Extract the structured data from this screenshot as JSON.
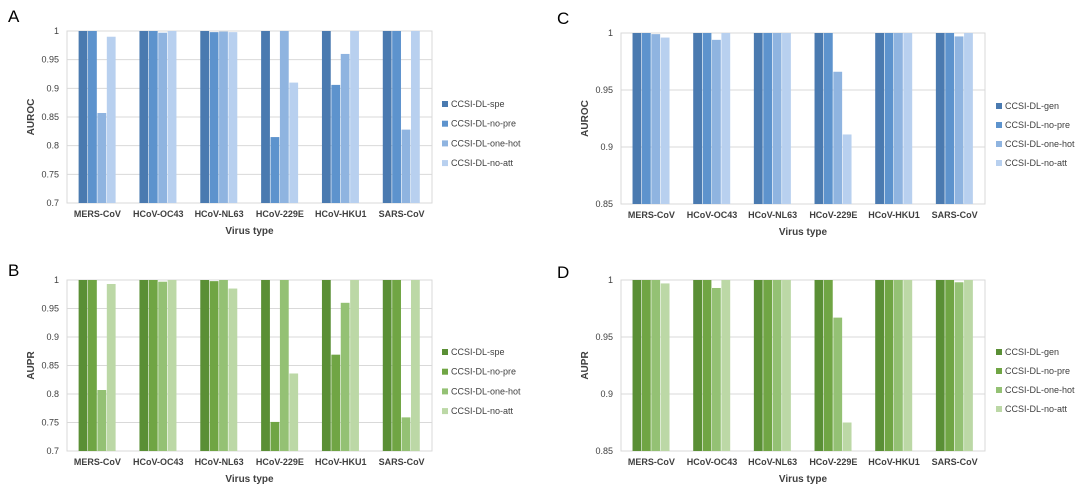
{
  "charts": [
    {
      "letter": "A",
      "type": "bar",
      "xlabel": "Virus type",
      "ylabel": "AUROC",
      "ylim": [
        0.7,
        1
      ],
      "yticks": [
        0.7,
        0.75,
        0.8,
        0.85,
        0.9,
        0.95,
        1
      ],
      "ytick_labels": [
        "0.7",
        "0.75",
        "0.8",
        "0.85",
        "0.9",
        "0.95",
        "1"
      ],
      "categories": [
        "MERS-CoV",
        "HCoV-OC43",
        "HCoV-NL63",
        "HCoV-229E",
        "HCoV-HKU1",
        "SARS-CoV"
      ],
      "series": [
        {
          "name": "CCSI-DL-spe",
          "color": "#4a7ab0",
          "values": [
            1.0,
            1.0,
            1.0,
            1.0,
            1.0,
            1.0
          ]
        },
        {
          "name": "CCSI-DL-no-pre",
          "color": "#5d93cd",
          "values": [
            1.0,
            1.0,
            0.998,
            0.815,
            0.906,
            1.0
          ]
        },
        {
          "name": "CCSI-DL-one-hot",
          "color": "#8fb4e0",
          "values": [
            0.857,
            0.997,
            0.999,
            1.0,
            0.96,
            0.828
          ]
        },
        {
          "name": "CCSI-DL-no-att",
          "color": "#b8d0ef",
          "values": [
            0.99,
            1.0,
            0.998,
            0.91,
            1.0,
            1.0
          ]
        }
      ],
      "legend": "right"
    },
    {
      "letter": "B",
      "type": "bar",
      "xlabel": "Virus type",
      "ylabel": "AUPR",
      "ylim": [
        0.7,
        1
      ],
      "yticks": [
        0.7,
        0.75,
        0.8,
        0.85,
        0.9,
        0.95,
        1
      ],
      "ytick_labels": [
        "0.7",
        "0.75",
        "0.8",
        "0.85",
        "0.9",
        "0.95",
        "1"
      ],
      "categories": [
        "MERS-CoV",
        "HCoV-OC43",
        "HCoV-NL63",
        "HCoV-229E",
        "HCoV-HKU1",
        "SARS-CoV"
      ],
      "series": [
        {
          "name": "CCSI-DL-spe",
          "color": "#5a8f35",
          "values": [
            1.0,
            1.0,
            1.0,
            1.0,
            1.0,
            1.0
          ]
        },
        {
          "name": "CCSI-DL-no-pre",
          "color": "#70a544",
          "values": [
            1.0,
            1.0,
            0.998,
            0.751,
            0.869,
            1.0
          ]
        },
        {
          "name": "CCSI-DL-one-hot",
          "color": "#94c174",
          "values": [
            0.807,
            0.997,
            1.0,
            1.0,
            0.96,
            0.759
          ]
        },
        {
          "name": "CCSI-DL-no-att",
          "color": "#bcd8a6",
          "values": [
            0.993,
            1.0,
            0.985,
            0.836,
            1.0,
            1.0
          ]
        }
      ],
      "legend": "right"
    },
    {
      "letter": "C",
      "type": "bar",
      "xlabel": "Virus type",
      "ylabel": "AUROC",
      "ylim": [
        0.85,
        1
      ],
      "yticks": [
        0.85,
        0.9,
        0.95,
        1
      ],
      "ytick_labels": [
        "0.85",
        "0.9",
        "0.95",
        "1"
      ],
      "categories": [
        "MERS-CoV",
        "HCoV-OC43",
        "HCoV-NL63",
        "HCoV-229E",
        "HCoV-HKU1",
        "SARS-CoV"
      ],
      "series": [
        {
          "name": "CCSI-DL-gen",
          "color": "#4a7ab0",
          "values": [
            1.0,
            1.0,
            1.0,
            1.0,
            1.0,
            1.0
          ]
        },
        {
          "name": "CCSI-DL-no-pre",
          "color": "#5d93cd",
          "values": [
            1.0,
            1.0,
            1.0,
            1.0,
            1.0,
            1.0
          ]
        },
        {
          "name": "CCSI-DL-one-hot",
          "color": "#8fb4e0",
          "values": [
            0.999,
            0.994,
            1.0,
            0.966,
            1.0,
            0.997
          ]
        },
        {
          "name": "CCSI-DL-no-att",
          "color": "#b8d0ef",
          "values": [
            0.996,
            1.0,
            1.0,
            0.911,
            1.0,
            1.0
          ]
        }
      ],
      "legend": "right"
    },
    {
      "letter": "D",
      "type": "bar",
      "xlabel": "Virus type",
      "ylabel": "AUPR",
      "ylim": [
        0.85,
        1
      ],
      "yticks": [
        0.85,
        0.9,
        0.95,
        1
      ],
      "ytick_labels": [
        "0.85",
        "0.9",
        "0.95",
        "1"
      ],
      "categories": [
        "MERS-CoV",
        "HCoV-OC43",
        "HCoV-NL63",
        "HCoV-229E",
        "HCoV-HKU1",
        "SARS-CoV"
      ],
      "series": [
        {
          "name": "CCSI-DL-gen",
          "color": "#5a8f35",
          "values": [
            1.0,
            1.0,
            1.0,
            1.0,
            1.0,
            1.0
          ]
        },
        {
          "name": "CCSI-DL-no-pre",
          "color": "#70a544",
          "values": [
            1.0,
            1.0,
            1.0,
            1.0,
            1.0,
            1.0
          ]
        },
        {
          "name": "CCSI-DL-one-hot",
          "color": "#94c174",
          "values": [
            1.0,
            0.993,
            1.0,
            0.967,
            1.0,
            0.998
          ]
        },
        {
          "name": "CCSI-DL-no-att",
          "color": "#bcd8a6",
          "values": [
            0.997,
            1.0,
            1.0,
            0.875,
            1.0,
            1.0
          ]
        }
      ],
      "legend": "right"
    }
  ]
}
